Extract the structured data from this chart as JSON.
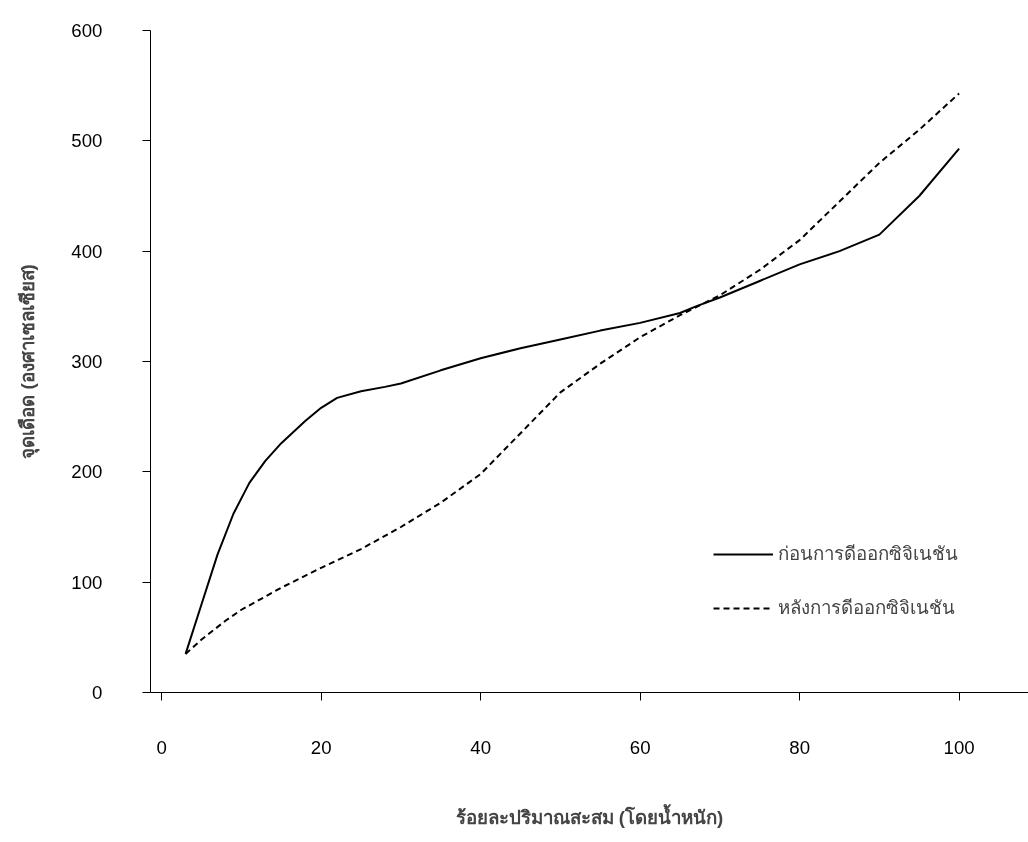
{
  "chart_data": {
    "type": "line",
    "xlabel": "ร้อยละปริมาณสะสม (โดยน้ำหนัก)",
    "ylabel": "จุดเดือด (องศาเซลเซียส)",
    "xlim": [
      -1.4,
      108.7
    ],
    "ylim": [
      0,
      600
    ],
    "xticks": [
      0,
      20,
      40,
      60,
      80,
      100
    ],
    "yticks": [
      0,
      100,
      200,
      300,
      400,
      500,
      600
    ],
    "grid": false,
    "legend": "bottom right",
    "marker": "none",
    "series": [
      {
        "name": "ก่อนการดีออกซิจิเนชัน",
        "color": "#000000",
        "line_style": "solid",
        "x": [
          3,
          5,
          7,
          9,
          11,
          13,
          15,
          18,
          20,
          22,
          25,
          28,
          30,
          35,
          40,
          45,
          50,
          55,
          60,
          65,
          67,
          70,
          75,
          80,
          85,
          90,
          95,
          100
        ],
        "values": [
          35,
          80,
          125,
          162,
          190,
          210,
          226,
          246,
          258,
          267,
          273,
          277,
          280,
          292,
          303,
          312,
          320,
          328,
          335,
          344,
          350,
          358,
          373,
          388,
          400,
          415,
          450,
          493
        ]
      },
      {
        "name": "หลังการดีออกซิจิเนชัน",
        "color": "#000000",
        "line_style": "dashed",
        "x": [
          3,
          5,
          8,
          10,
          15,
          20,
          25,
          30,
          35,
          40,
          45,
          50,
          55,
          60,
          65,
          70,
          75,
          80,
          85,
          90,
          95,
          100
        ],
        "values": [
          35,
          48,
          65,
          75,
          95,
          113,
          130,
          150,
          172,
          198,
          235,
          272,
          298,
          322,
          342,
          360,
          383,
          410,
          445,
          480,
          510,
          543
        ]
      }
    ]
  }
}
